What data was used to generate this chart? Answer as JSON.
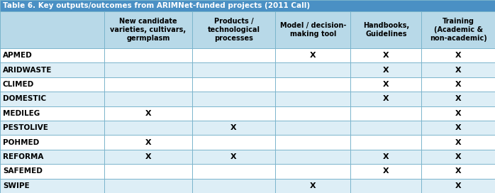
{
  "title": "Table 6. Key outputs/outcomes from ARIMNet-funded projects (2011 Call)",
  "title_bg": "#4a90c4",
  "title_color": "#ffffff",
  "header_bg": "#b8d9e8",
  "header_color": "#000000",
  "col_headers": [
    "New candidate\nvarieties, cultivars,\ngermplasm",
    "Products /\ntechnological\nprocesses",
    "Model / decision-\nmaking tool",
    "Handbooks,\nGuidelines",
    "Training\n(Academic &\nnon-academic)"
  ],
  "rows": [
    "APMED",
    "ARIDWASTE",
    "CLIMED",
    "DOMESTIC",
    "MEDILEG",
    "PESTOLIVE",
    "POHMED",
    "REFORMA",
    "SAFEMED",
    "SWIPE"
  ],
  "marks": {
    "APMED": [
      0,
      0,
      1,
      1,
      1
    ],
    "ARIDWASTE": [
      0,
      0,
      0,
      1,
      1
    ],
    "CLIMED": [
      0,
      0,
      0,
      1,
      1
    ],
    "DOMESTIC": [
      0,
      0,
      0,
      1,
      1
    ],
    "MEDILEG": [
      1,
      0,
      0,
      0,
      1
    ],
    "PESTOLIVE": [
      0,
      1,
      0,
      0,
      1
    ],
    "POHMED": [
      1,
      0,
      0,
      0,
      1
    ],
    "REFORMA": [
      1,
      1,
      0,
      1,
      1
    ],
    "SAFEMED": [
      0,
      0,
      0,
      1,
      1
    ],
    "SWIPE": [
      0,
      0,
      1,
      0,
      1
    ]
  },
  "row_bg_odd": "#ffffff",
  "row_bg_even": "#ddeef6",
  "border_color": "#7ab4cc",
  "mark_symbol": "X",
  "mark_fontsize": 8,
  "row_label_fontsize": 7.5,
  "header_fontsize": 7.0,
  "title_fontsize": 7.5,
  "col_widths_rel": [
    1.25,
    1.05,
    1.0,
    0.9,
    0.85,
    0.88
  ]
}
